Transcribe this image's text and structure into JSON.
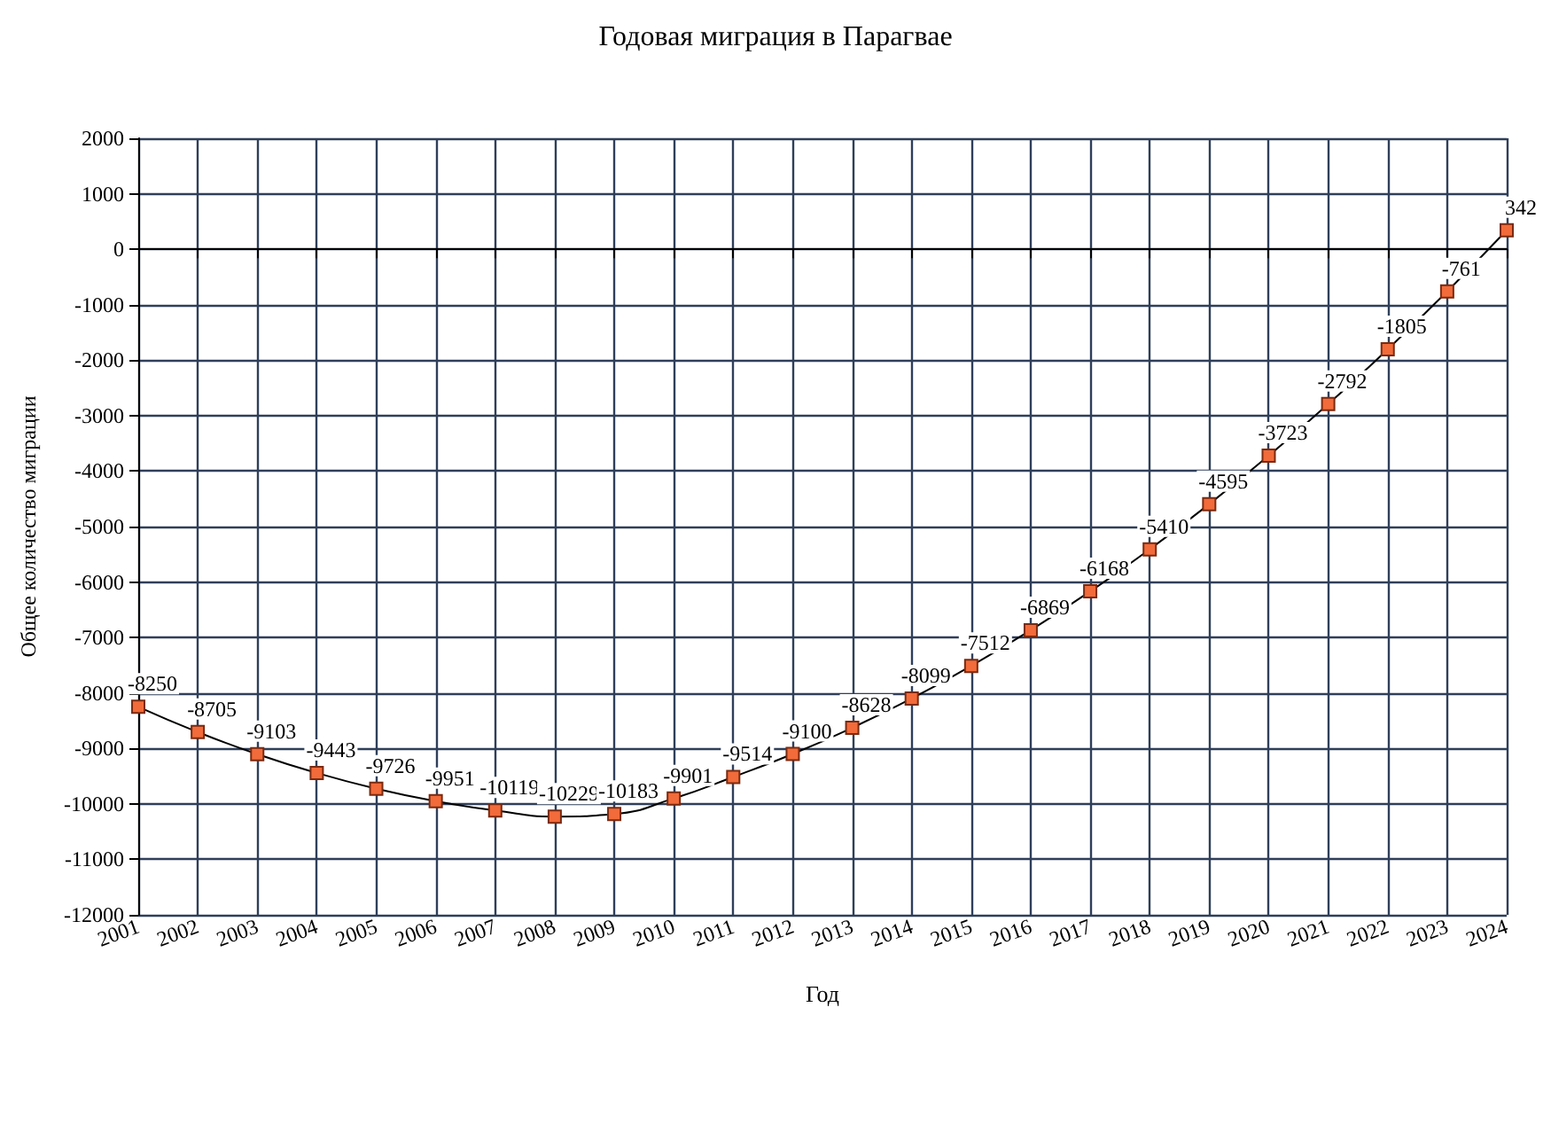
{
  "chart_data": {
    "type": "line",
    "title": "Годовая миграция в Парагвае",
    "xlabel": "Год",
    "ylabel": "Общее количество миграции",
    "categories": [
      "2001",
      "2002",
      "2003",
      "2004",
      "2005",
      "2006",
      "2007",
      "2008",
      "2009",
      "2010",
      "2011",
      "2012",
      "2013",
      "2014",
      "2015",
      "2016",
      "2017",
      "2018",
      "2019",
      "2020",
      "2021",
      "2022",
      "2023",
      "2024"
    ],
    "series": [
      {
        "color": "#000000",
        "values": [
          -8250,
          -8705,
          -9103,
          -9443,
          -9726,
          -9951,
          -10119,
          -10229,
          -10183,
          -9901,
          -9514,
          -9100,
          -8628,
          -8099,
          -7512,
          -6869,
          -6168,
          -5410,
          -4595,
          -3723,
          -2792,
          -1805,
          -761,
          342
        ]
      }
    ],
    "ylim": [
      -12000,
      2000
    ],
    "yticks": [
      -12000,
      -11000,
      -10000,
      -9000,
      -8000,
      -7000,
      -6000,
      -5000,
      -4000,
      -3000,
      -2000,
      -1000,
      0,
      1000,
      2000
    ],
    "grid": true,
    "marker": "square",
    "line_style": "solid",
    "data_labels": true
  }
}
